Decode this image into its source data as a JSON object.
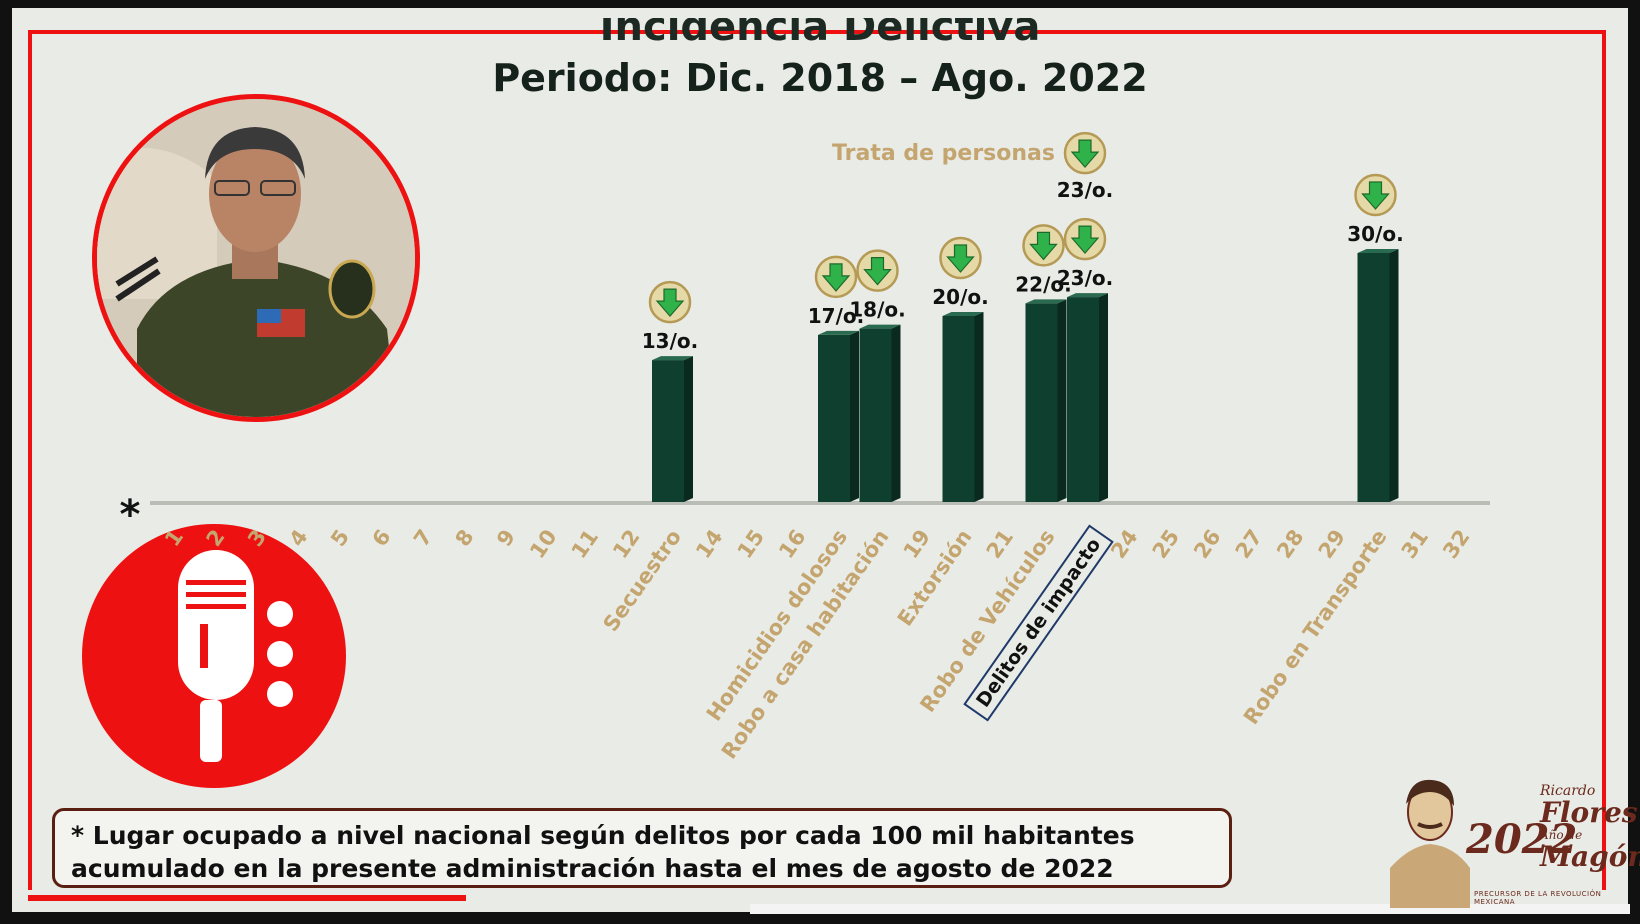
{
  "slide": {
    "title": "Incidencia Delictiva",
    "subtitle": "Periodo: Dic. 2018 – Ago. 2022",
    "note_line1": "* Lugar ocupado a nivel nacional según delitos por cada 100 mil habitantes",
    "note_line2": "acumulado en la presente administración hasta el mes de agosto de 2022"
  },
  "stamp": {
    "year": "2022",
    "name_line1": "Ricardo",
    "name_line2": "Flores",
    "name_line3": "Magón",
    "year_of": "Año de",
    "caption": "PRECURSOR DE LA REVOLUCIÓN MEXICANA"
  },
  "colors": {
    "bar": "#0f3f2e",
    "bar_side": "#0a2a1f",
    "label_gold": "#c4a56f",
    "arrow_green": "#2fb24a",
    "frame_red": "#ee1111"
  },
  "chart_data": {
    "type": "bar",
    "axis_marker": "*",
    "x_axis": [
      "1",
      "2",
      "3",
      "4",
      "5",
      "6",
      "7",
      "8",
      "9",
      "10",
      "11",
      "12",
      "Secuestro",
      "14",
      "15",
      "16",
      "Homicidios dolosos",
      "Robo a casa habitación",
      "19",
      "Extorsión",
      "21",
      "Robo de Vehículos",
      "Delitos de impacto",
      "24",
      "25",
      "26",
      "27",
      "28",
      "29",
      "Robo en Transporte",
      "31",
      "32"
    ],
    "highlighted_category": "Delitos de impacto",
    "series": [
      {
        "values": [
          {
            "category": "Secuestro",
            "rank": 13,
            "label": "13/o."
          },
          {
            "category": "Homicidios dolosos",
            "rank": 17,
            "label": "17/o."
          },
          {
            "category": "Robo a casa habitación",
            "rank": 18,
            "label": "18/o."
          },
          {
            "category": "Extorsión",
            "rank": 20,
            "label": "20/o."
          },
          {
            "category": "Robo de Vehículos",
            "rank": 22,
            "label": "22/o."
          },
          {
            "category": "Delitos de impacto",
            "rank": 23,
            "label": "23/o."
          },
          {
            "category": "Robo en Transporte",
            "rank": 30,
            "label": "30/o."
          }
        ]
      }
    ],
    "annotation": {
      "text": "Trata de personas",
      "rank": 23,
      "label": "23/o."
    },
    "trend_icon": "down-arrow-icon"
  }
}
